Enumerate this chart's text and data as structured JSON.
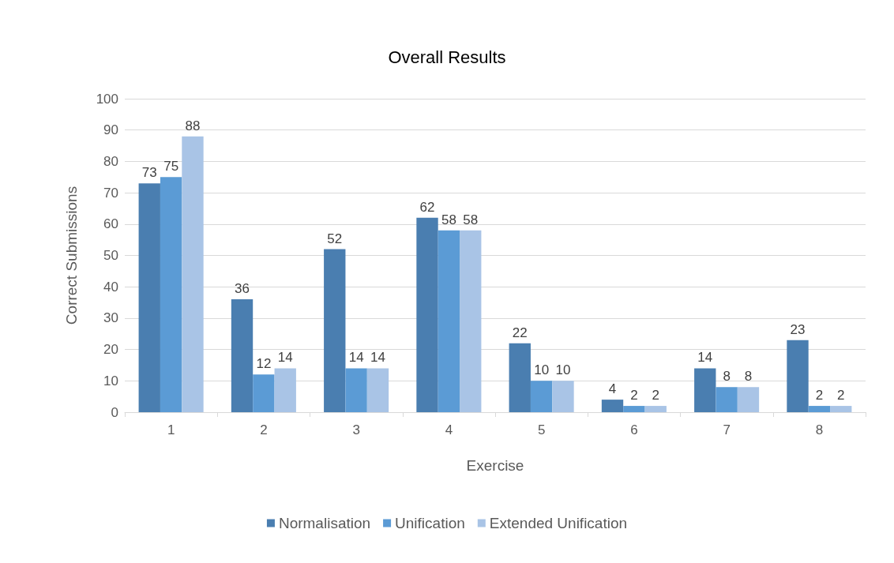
{
  "chart_data": {
    "type": "bar",
    "title": "Overall Results",
    "xlabel": "Exercise",
    "ylabel": "Correct Submissions",
    "categories": [
      "1",
      "2",
      "3",
      "4",
      "5",
      "6",
      "7",
      "8"
    ],
    "series": [
      {
        "name": "Normalisation",
        "color": "#4a7eb0",
        "values": [
          73,
          36,
          52,
          62,
          22,
          4,
          14,
          23
        ]
      },
      {
        "name": "Unification",
        "color": "#5b9bd5",
        "values": [
          75,
          12,
          14,
          58,
          10,
          2,
          8,
          2
        ]
      },
      {
        "name": "Extended Unification",
        "color": "#a9c4e6",
        "values": [
          88,
          14,
          14,
          58,
          10,
          2,
          8,
          2
        ]
      }
    ],
    "ylim": [
      0,
      100
    ],
    "yticks": [
      0,
      10,
      20,
      30,
      40,
      50,
      60,
      70,
      80,
      90,
      100
    ],
    "grid": "y",
    "legend": "bottom",
    "data_labels": true
  }
}
